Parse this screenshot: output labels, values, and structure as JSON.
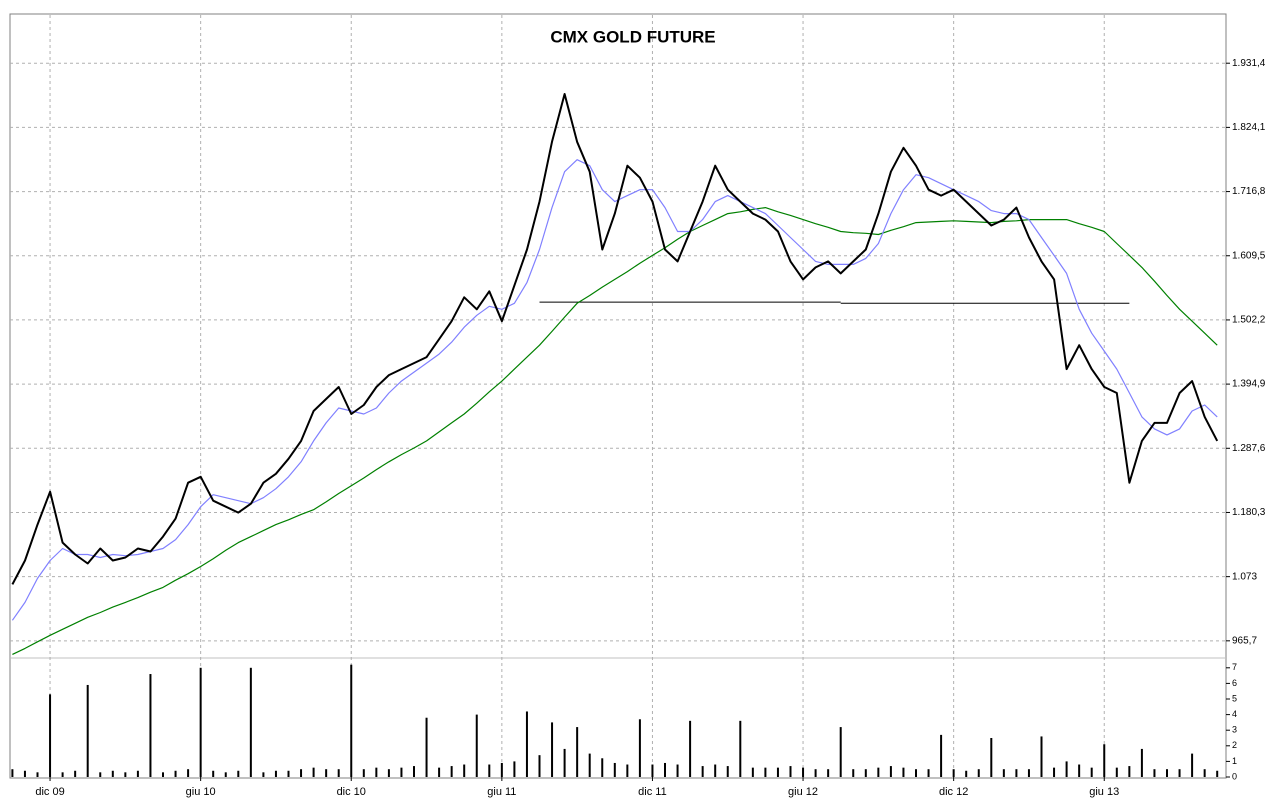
{
  "chart_data": [
    {
      "type": "line",
      "title": "CMX GOLD FUTURE",
      "categories": [
        null,
        null,
        null,
        "dic 09",
        null,
        null,
        null,
        null,
        null,
        null,
        null,
        null,
        null,
        null,
        null,
        "giu 10",
        null,
        null,
        null,
        null,
        null,
        null,
        null,
        null,
        null,
        null,
        null,
        "dic 10",
        null,
        null,
        null,
        null,
        null,
        null,
        null,
        null,
        null,
        null,
        null,
        "giu 11",
        null,
        null,
        null,
        null,
        null,
        null,
        null,
        null,
        null,
        null,
        null,
        "dic 11",
        null,
        null,
        null,
        null,
        null,
        null,
        null,
        null,
        null,
        null,
        null,
        "giu 12",
        null,
        null,
        null,
        null,
        null,
        null,
        null,
        null,
        null,
        null,
        null,
        "dic 12",
        null,
        null,
        null,
        null,
        null,
        null,
        null,
        null,
        null,
        null,
        null,
        "giu 13",
        null,
        null,
        null,
        null,
        null,
        null,
        null,
        null,
        null
      ],
      "series": [
        {
          "color": "#008000",
          "values": [
            943,
            953,
            964,
            975,
            985,
            995,
            1005,
            1013,
            1022,
            1030,
            1038,
            1047,
            1055,
            1067,
            1078,
            1090,
            1103,
            1117,
            1130,
            1140,
            1150,
            1160,
            1168,
            1177,
            1185,
            1198,
            1212,
            1225,
            1238,
            1252,
            1265,
            1277,
            1288,
            1300,
            1315,
            1330,
            1345,
            1363,
            1382,
            1400,
            1420,
            1440,
            1460,
            1483,
            1507,
            1530,
            1543,
            1557,
            1570,
            1583,
            1597,
            1610,
            1623,
            1637,
            1650,
            1660,
            1670,
            1680,
            1683,
            1687,
            1690,
            1683,
            1677,
            1670,
            1663,
            1657,
            1650,
            1648,
            1647,
            1645,
            1652,
            1658,
            1665,
            1666,
            1667,
            1668,
            1667,
            1666,
            1665,
            1667,
            1668,
            1670,
            1670,
            1670,
            1670,
            1663,
            1657,
            1650,
            1630,
            1610,
            1590,
            1567,
            1543,
            1520,
            1500,
            1480,
            1460
          ]
        },
        {
          "color": "#8080ff",
          "values": [
            1000,
            1030,
            1070,
            1100,
            1120,
            1110,
            1110,
            1105,
            1110,
            1108,
            1110,
            1115,
            1120,
            1135,
            1160,
            1190,
            1210,
            1205,
            1200,
            1195,
            1205,
            1220,
            1240,
            1265,
            1300,
            1330,
            1355,
            1350,
            1345,
            1355,
            1380,
            1400,
            1415,
            1430,
            1445,
            1465,
            1490,
            1510,
            1525,
            1520,
            1530,
            1565,
            1620,
            1690,
            1750,
            1770,
            1760,
            1720,
            1700,
            1710,
            1720,
            1720,
            1690,
            1650,
            1650,
            1670,
            1700,
            1710,
            1700,
            1690,
            1680,
            1660,
            1640,
            1620,
            1600,
            1595,
            1595,
            1595,
            1605,
            1630,
            1680,
            1720,
            1745,
            1740,
            1730,
            1720,
            1710,
            1700,
            1685,
            1680,
            1680,
            1670,
            1640,
            1610,
            1580,
            1520,
            1480,
            1450,
            1420,
            1380,
            1340,
            1320,
            1310,
            1320,
            1350,
            1360,
            1340
          ]
        },
        {
          "color": "#000000",
          "values": [
            1060,
            1100,
            1160,
            1215,
            1130,
            1110,
            1095,
            1120,
            1100,
            1105,
            1120,
            1115,
            1140,
            1170,
            1230,
            1240,
            1200,
            1190,
            1180,
            1195,
            1230,
            1245,
            1270,
            1300,
            1350,
            1370,
            1390,
            1345,
            1360,
            1390,
            1410,
            1420,
            1430,
            1440,
            1470,
            1500,
            1540,
            1520,
            1550,
            1500,
            1560,
            1620,
            1700,
            1800,
            1880,
            1800,
            1750,
            1620,
            1680,
            1760,
            1740,
            1700,
            1620,
            1600,
            1650,
            1700,
            1760,
            1720,
            1700,
            1680,
            1670,
            1650,
            1600,
            1570,
            1590,
            1600,
            1580,
            1600,
            1620,
            1680,
            1750,
            1790,
            1760,
            1720,
            1710,
            1720,
            1700,
            1680,
            1660,
            1670,
            1690,
            1640,
            1600,
            1570,
            1420,
            1460,
            1420,
            1390,
            1380,
            1230,
            1300,
            1330,
            1330,
            1380,
            1400,
            1340,
            1300
          ]
        }
      ],
      "hlines": [
        1532,
        1530
      ],
      "ylim": [
        942,
        2012
      ],
      "yticks": [
        {
          "value": 965.7,
          "label": "965,7"
        },
        {
          "value": 1073.0,
          "label": "1.073"
        },
        {
          "value": 1180.3,
          "label": "1.180,3"
        },
        {
          "value": 1287.6,
          "label": "1.287,6"
        },
        {
          "value": 1394.9,
          "label": "1.394,9"
        },
        {
          "value": 1502.2,
          "label": "1.502,2"
        },
        {
          "value": 1609.5,
          "label": "1.609,5"
        },
        {
          "value": 1716.8,
          "label": "1.716,8"
        },
        {
          "value": 1824.1,
          "label": "1.824,1"
        },
        {
          "value": 1931.4,
          "label": "1.931,4"
        }
      ],
      "grid": true
    },
    {
      "type": "bar",
      "color": "#000000",
      "values": [
        0.5,
        0.4,
        0.3,
        5.3,
        0.3,
        0.4,
        5.9,
        0.3,
        0.4,
        0.3,
        0.4,
        6.6,
        0.3,
        0.4,
        0.5,
        7.0,
        0.4,
        0.3,
        0.4,
        7.0,
        0.3,
        0.4,
        0.4,
        0.5,
        0.6,
        0.5,
        0.5,
        7.2,
        0.5,
        0.6,
        0.5,
        0.6,
        0.7,
        3.8,
        0.6,
        0.7,
        0.8,
        4.0,
        0.8,
        0.9,
        1.0,
        4.2,
        1.4,
        3.5,
        1.8,
        3.2,
        1.5,
        1.2,
        0.9,
        0.8,
        3.7,
        0.8,
        0.9,
        0.8,
        3.6,
        0.7,
        0.8,
        0.7,
        3.6,
        0.6,
        0.6,
        0.6,
        0.7,
        0.6,
        0.5,
        0.5,
        3.2,
        0.5,
        0.5,
        0.6,
        0.7,
        0.6,
        0.5,
        0.5,
        2.7,
        0.5,
        0.4,
        0.5,
        2.5,
        0.5,
        0.5,
        0.5,
        2.6,
        0.6,
        1.0,
        0.8,
        0.6,
        2.1,
        0.6,
        0.7,
        1.8,
        0.5,
        0.5,
        0.5,
        1.5,
        0.5,
        0.4
      ],
      "ylim": [
        0,
        7.5
      ],
      "yticks": [
        0,
        1,
        2,
        3,
        4,
        5,
        6,
        7
      ]
    }
  ]
}
